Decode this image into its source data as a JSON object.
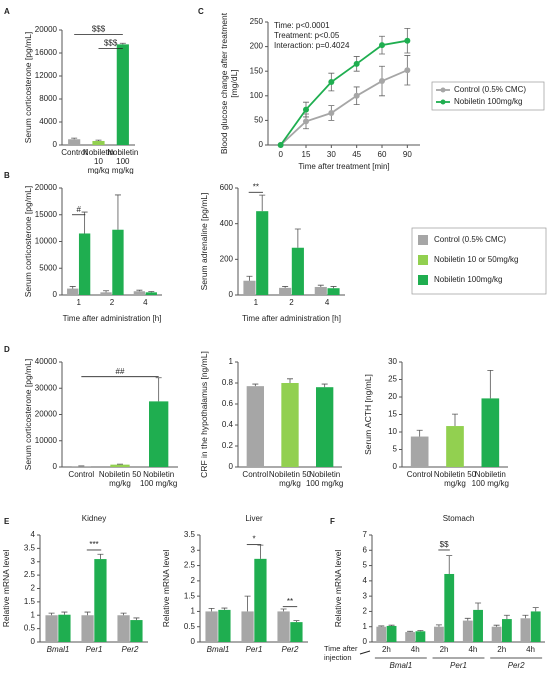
{
  "chart_data": [
    {
      "type": "bar",
      "panel": "A",
      "ylabel": "Serum corticosterone [pg/mL]",
      "categories": [
        "Control",
        "Nobiletin 10 mg/kg",
        "Nobiletin 100 mg/kg"
      ],
      "series": [
        {
          "colors": [
            "#a6a6a6",
            "#92d050",
            "#1fae50"
          ],
          "values": [
            1000,
            700,
            17500
          ],
          "errors": [
            200,
            150,
            200
          ]
        }
      ],
      "ylim": [
        0,
        20000
      ],
      "yticks": [
        0,
        4000,
        8000,
        12000,
        16000,
        20000
      ],
      "annotations": [
        "$$$",
        "$$$"
      ]
    },
    {
      "type": "line",
      "panel": "C",
      "ylabel": "Blood glucose change after treatment  [mg/dL]",
      "xlabel": "Time after treatment [min]",
      "categories": [
        "0",
        "15",
        "30",
        "45",
        "60",
        "90"
      ],
      "series": [
        {
          "name": "Control (0.5% CMC)",
          "color": "#a6a6a6",
          "values": [
            0,
            48,
            65,
            100,
            130,
            152
          ],
          "errors": [
            0,
            15,
            15,
            18,
            30,
            30
          ]
        },
        {
          "name": "Nobiletin 100mg/kg",
          "color": "#1fae50",
          "values": [
            0,
            72,
            128,
            165,
            203,
            212
          ],
          "errors": [
            0,
            15,
            18,
            15,
            18,
            25
          ]
        }
      ],
      "ylim": [
        0,
        250
      ],
      "yticks": [
        0,
        50,
        100,
        150,
        200,
        250
      ],
      "stats": [
        "Time: p<0.0001",
        "Treatment: p<0.05",
        "Interaction: p=0.4024"
      ]
    },
    {
      "type": "bar",
      "panel": "B",
      "ylabel": "Serum corticosterone [pg/mL]",
      "xlabel": "Time after administration  [h]",
      "categories": [
        "1",
        "2",
        "4"
      ],
      "series": [
        {
          "color": "#a6a6a6",
          "values": [
            1200,
            500,
            700
          ],
          "errors": [
            400,
            300,
            200
          ]
        },
        {
          "color": "#1fae50",
          "values": [
            11500,
            12200,
            500
          ],
          "errors": [
            4000,
            6500,
            150
          ]
        }
      ],
      "ylim": [
        0,
        20000
      ],
      "yticks": [
        0,
        5000,
        10000,
        15000,
        20000
      ],
      "annotations": [
        "#"
      ]
    },
    {
      "type": "bar",
      "ylabel": "Serum adrenaline [pg/mL]",
      "xlabel": "Time after administration [h]",
      "categories": [
        "1",
        "2",
        "4"
      ],
      "series": [
        {
          "color": "#a6a6a6",
          "values": [
            80,
            40,
            45
          ],
          "errors": [
            25,
            8,
            10
          ]
        },
        {
          "color": "#1fae50",
          "values": [
            470,
            265,
            38
          ],
          "errors": [
            90,
            105,
            10
          ]
        }
      ],
      "ylim": [
        0,
        600
      ],
      "yticks": [
        0,
        200,
        400,
        600
      ],
      "annotations": [
        "**"
      ],
      "legend": [
        {
          "name": "Control (0.5% CMC)",
          "color": "#a6a6a6"
        },
        {
          "name": "Nobiletin 10 or 50mg/kg",
          "color": "#92d050"
        },
        {
          "name": "Nobiletin 100mg/kg",
          "color": "#1fae50"
        }
      ]
    },
    {
      "type": "bar",
      "panel": "D",
      "ylabel": "Serum corticosterone [pg/mL]",
      "categories": [
        "Control",
        "Nobiletin 50 mg/kg",
        "Nobiletin 100 mg/kg"
      ],
      "series": [
        {
          "colors": [
            "#a6a6a6",
            "#92d050",
            "#1fae50"
          ],
          "values": [
            300,
            900,
            25000
          ],
          "errors": [
            100,
            200,
            9000
          ]
        }
      ],
      "ylim": [
        0,
        40000
      ],
      "yticks": [
        0,
        10000,
        20000,
        30000,
        40000
      ],
      "annotations": [
        "##"
      ]
    },
    {
      "type": "bar",
      "ylabel": "CRF in the hypothalamus [ng/mL]",
      "categories": [
        "Control",
        "Nobiletin 50 mg/kg",
        "Nobiletin 100 mg/kg"
      ],
      "series": [
        {
          "colors": [
            "#a6a6a6",
            "#92d050",
            "#1fae50"
          ],
          "values": [
            0.77,
            0.8,
            0.76
          ],
          "errors": [
            0.02,
            0.04,
            0.03
          ]
        }
      ],
      "ylim": [
        0,
        1
      ],
      "yticks": [
        0,
        0.2,
        0.4,
        0.6,
        0.8,
        1
      ]
    },
    {
      "type": "bar",
      "ylabel": "Serum ACTH [ng/mL]",
      "categories": [
        "Control",
        "Nobiletin 50 mg/kg",
        "Nobiletin 100 mg/kg"
      ],
      "series": [
        {
          "colors": [
            "#a6a6a6",
            "#92d050",
            "#1fae50"
          ],
          "values": [
            8.7,
            11.7,
            19.6
          ],
          "errors": [
            1.8,
            3.4,
            8
          ]
        }
      ],
      "ylim": [
        0,
        30
      ],
      "yticks": [
        0,
        5,
        10,
        15,
        20,
        25,
        30
      ]
    },
    {
      "type": "bar",
      "panel": "E",
      "title": "Kidney",
      "ylabel": "Relative mRNA level",
      "italic": true,
      "categories": [
        "Bmal1",
        "Per1",
        "Per2"
      ],
      "series": [
        {
          "color": "#a6a6a6",
          "values": [
            1,
            1,
            1
          ],
          "errors": [
            0.08,
            0.12,
            0.08
          ]
        },
        {
          "color": "#1fae50",
          "values": [
            1.02,
            3.1,
            0.82
          ],
          "errors": [
            0.1,
            0.18,
            0.08
          ]
        }
      ],
      "ylim": [
        0,
        4
      ],
      "yticks": [
        0,
        0.5,
        1,
        1.5,
        2,
        2.5,
        3,
        3.5,
        4
      ],
      "annotations": [
        "***"
      ]
    },
    {
      "type": "bar",
      "title": "Liver",
      "ylabel": "Relative mRNA level",
      "italic": true,
      "categories": [
        "Bmal1",
        "Per1",
        "Per2"
      ],
      "series": [
        {
          "color": "#a6a6a6",
          "values": [
            1,
            1,
            1
          ],
          "errors": [
            0.1,
            0.5,
            0.08
          ]
        },
        {
          "color": "#1fae50",
          "values": [
            1.05,
            2.72,
            0.65
          ],
          "errors": [
            0.06,
            0.45,
            0.05
          ]
        }
      ],
      "ylim": [
        0,
        3.5
      ],
      "yticks": [
        0,
        0.5,
        1,
        1.5,
        2,
        2.5,
        3,
        3.5
      ],
      "annotations": [
        "*",
        "**"
      ]
    },
    {
      "type": "bar",
      "panel": "F",
      "title": "Stomach",
      "ylabel": "Relative mRNA level",
      "xlabel": "Time after injection",
      "categories": [
        "2h",
        "4h",
        "2h",
        "4h",
        "2h",
        "4h"
      ],
      "groups": [
        "Bmal1",
        "Per1",
        "Per2"
      ],
      "series": [
        {
          "color": "#a6a6a6",
          "values": [
            1.0,
            0.65,
            1.0,
            1.4,
            1.0,
            1.55
          ],
          "errors": [
            0.05,
            0.05,
            0.12,
            0.15,
            0.1,
            0.2
          ]
        },
        {
          "color": "#1fae50",
          "values": [
            1.05,
            0.7,
            4.45,
            2.1,
            1.5,
            2.0
          ],
          "errors": [
            0.05,
            0.05,
            1.2,
            0.45,
            0.25,
            0.25
          ]
        }
      ],
      "ylim": [
        0,
        7
      ],
      "yticks": [
        0,
        1,
        2,
        3,
        4,
        5,
        6,
        7
      ],
      "annotations": [
        "$$"
      ]
    }
  ]
}
